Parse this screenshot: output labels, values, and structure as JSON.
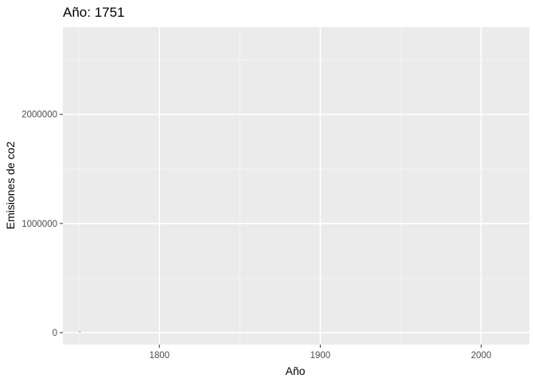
{
  "chart_data": {
    "type": "line",
    "title": "Año: 1751",
    "xlabel": "Año",
    "ylabel": "Emisiones de co2",
    "xlim": [
      1740,
      2030
    ],
    "ylim": [
      -110000,
      2800000
    ],
    "x_ticks": [
      {
        "value": 1800,
        "label": "1800"
      },
      {
        "value": 1900,
        "label": "1900"
      },
      {
        "value": 2000,
        "label": "2000"
      }
    ],
    "y_ticks": [
      {
        "value": 0,
        "label": "0"
      },
      {
        "value": 1000000,
        "label": "1000000"
      },
      {
        "value": 2000000,
        "label": "2000000"
      }
    ],
    "x_minor_ticks": [
      1750,
      1850,
      1950
    ],
    "y_minor_ticks": [
      500000,
      1500000,
      2500000
    ],
    "grid": true,
    "legend": "none",
    "colors": {
      "panel_background": "#ebebeb",
      "grid_major": "#ffffff",
      "grid_minor": "#f5f5f5",
      "series": "#f8766d"
    },
    "series": [
      {
        "x": [
          1750,
          1751
        ],
        "values": [
          9350,
          9350
        ]
      }
    ]
  }
}
